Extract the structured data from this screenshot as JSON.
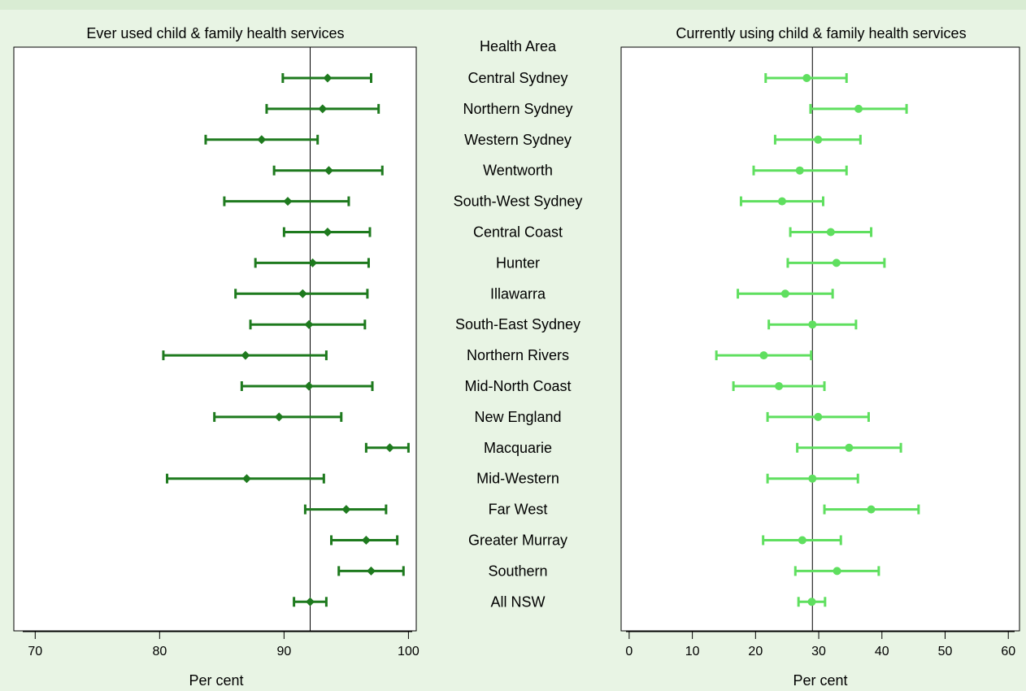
{
  "chart_data": [
    {
      "type": "errorbar",
      "title": "Ever used child & family health services",
      "xlabel": "Per cent",
      "xlim": [
        69,
        100.3
      ],
      "xticks": [
        70,
        80,
        90,
        100
      ],
      "reference_line": 92.1,
      "marker": "diamond",
      "color": "#1e7a1e",
      "categories": [
        "Central Sydney",
        "Northern Sydney",
        "Western Sydney",
        "Wentworth",
        "South-West Sydney",
        "Central Coast",
        "Hunter",
        "Illawarra",
        "South-East Sydney",
        "Northern Rivers",
        "Mid-North Coast",
        "New England",
        "Macquarie",
        "Mid-Western",
        "Far West",
        "Greater Murray",
        "Southern",
        "All NSW"
      ],
      "estimates": [
        93.5,
        93.1,
        88.2,
        93.6,
        90.3,
        93.5,
        92.3,
        91.5,
        92.0,
        86.9,
        92.0,
        89.6,
        98.5,
        87.0,
        95.0,
        96.6,
        97.0,
        92.1
      ],
      "lower": [
        89.9,
        88.6,
        83.7,
        89.2,
        85.2,
        90.0,
        87.7,
        86.1,
        87.3,
        80.3,
        86.6,
        84.4,
        96.6,
        80.6,
        91.7,
        93.8,
        94.4,
        90.8
      ],
      "upper": [
        97.0,
        97.6,
        92.7,
        97.9,
        95.2,
        96.9,
        96.8,
        96.7,
        96.5,
        93.4,
        97.1,
        94.6,
        100.0,
        93.2,
        98.2,
        99.1,
        99.6,
        93.4
      ]
    },
    {
      "type": "errorbar",
      "title": "Currently using child & family health services",
      "xlabel": "Per cent",
      "xlim": [
        -0.5,
        61
      ],
      "xticks": [
        0,
        10,
        20,
        30,
        40,
        50,
        60
      ],
      "reference_line": 29.0,
      "marker": "circle",
      "color": "#5fdf5f",
      "categories": [
        "Central Sydney",
        "Northern Sydney",
        "Western Sydney",
        "Wentworth",
        "South-West Sydney",
        "Central Coast",
        "Hunter",
        "Illawarra",
        "South-East Sydney",
        "Northern Rivers",
        "Mid-North Coast",
        "New England",
        "Macquarie",
        "Mid-Western",
        "Far West",
        "Greater Murray",
        "Southern",
        "All NSW"
      ],
      "estimates": [
        28.1,
        36.3,
        29.9,
        27.0,
        24.2,
        31.9,
        32.8,
        24.7,
        29.0,
        21.3,
        23.7,
        29.9,
        34.8,
        29.0,
        38.3,
        27.4,
        32.9,
        28.9
      ],
      "lower": [
        21.6,
        28.7,
        23.1,
        19.7,
        17.7,
        25.5,
        25.1,
        17.2,
        22.1,
        13.8,
        16.5,
        21.9,
        26.6,
        21.9,
        30.9,
        21.2,
        26.3,
        26.8
      ],
      "upper": [
        34.4,
        43.9,
        36.6,
        34.4,
        30.7,
        38.3,
        40.4,
        32.2,
        35.9,
        28.8,
        30.9,
        37.9,
        43.0,
        36.2,
        45.8,
        33.5,
        39.5,
        31.0
      ]
    }
  ],
  "labels": {
    "header": "Health Area",
    "areas": [
      "Central Sydney",
      "Northern Sydney",
      "Western Sydney",
      "Wentworth",
      "South-West Sydney",
      "Central Coast",
      "Hunter",
      "Illawarra",
      "South-East Sydney",
      "Northern Rivers",
      "Mid-North Coast",
      "New England",
      "Macquarie",
      "Mid-Western",
      "Far West",
      "Greater Murray",
      "Southern",
      "All NSW"
    ]
  }
}
